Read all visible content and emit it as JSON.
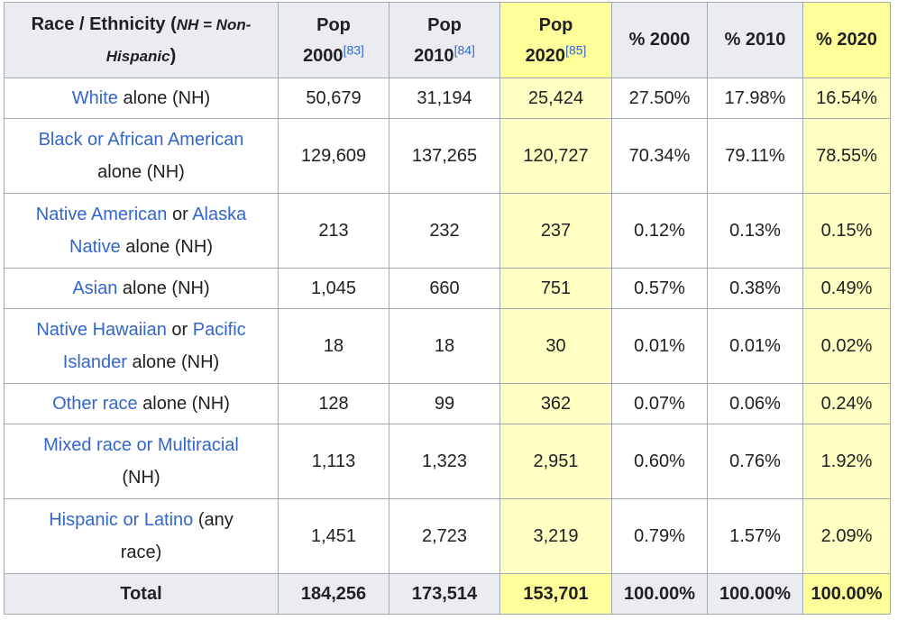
{
  "table": {
    "headers": {
      "race": {
        "label": "Race / Ethnicity",
        "note_open": " (",
        "note": "NH = Non-Hispanic",
        "note_close": ")"
      },
      "pop2000": {
        "label": "Pop",
        "year": "2000",
        "ref": "[83]"
      },
      "pop2010": {
        "label": "Pop",
        "year": "2010",
        "ref": "[84]"
      },
      "pop2020": {
        "label": "Pop",
        "year": "2020",
        "ref": "[85]"
      },
      "pct2000": "% 2000",
      "pct2010": "% 2010",
      "pct2020": "% 2020"
    },
    "rows": [
      {
        "link1": "White",
        "mid": " alone (NH)",
        "pop2000": "50,679",
        "pop2010": "31,194",
        "pop2020": "25,424",
        "pct2000": "27.50%",
        "pct2010": "17.98%",
        "pct2020": "16.54%"
      },
      {
        "link1": "Black or African American",
        "mid": "alone (NH)",
        "pop2000": "129,609",
        "pop2010": "137,265",
        "pop2020": "120,727",
        "pct2000": "70.34%",
        "pct2010": "79.11%",
        "pct2020": "78.55%"
      },
      {
        "link1": "Native American",
        "mid": " or ",
        "link2": "Alaska",
        "link3": "Native",
        "tail": " alone (NH)",
        "pop2000": "213",
        "pop2010": "232",
        "pop2020": "237",
        "pct2000": "0.12%",
        "pct2010": "0.13%",
        "pct2020": "0.15%"
      },
      {
        "link1": "Asian",
        "mid": " alone (NH)",
        "pop2000": "1,045",
        "pop2010": "660",
        "pop2020": "751",
        "pct2000": "0.57%",
        "pct2010": "0.38%",
        "pct2020": "0.49%"
      },
      {
        "link1": "Native Hawaiian",
        "mid": " or ",
        "link2": "Pacific",
        "link3": "Islander",
        "tail": " alone (NH)",
        "pop2000": "18",
        "pop2010": "18",
        "pop2020": "30",
        "pct2000": "0.01%",
        "pct2010": "0.01%",
        "pct2020": "0.02%"
      },
      {
        "link1": "Other race",
        "mid": " alone (NH)",
        "pop2000": "128",
        "pop2010": "99",
        "pop2020": "362",
        "pct2000": "0.07%",
        "pct2010": "0.06%",
        "pct2020": "0.24%"
      },
      {
        "link1": "Mixed race or Multiracial",
        "mid": "(NH)",
        "pop2000": "1,113",
        "pop2010": "1,323",
        "pop2020": "2,951",
        "pct2000": "0.60%",
        "pct2010": "0.76%",
        "pct2020": "1.92%"
      },
      {
        "link1": "Hispanic or Latino",
        "mid": " (any",
        "tail": "race)",
        "pop2000": "1,451",
        "pop2010": "2,723",
        "pop2020": "3,219",
        "pct2000": "0.79%",
        "pct2010": "1.57%",
        "pct2020": "2.09%"
      }
    ],
    "total": {
      "label": "Total",
      "pop2000": "184,256",
      "pop2010": "173,514",
      "pop2020": "153,701",
      "pct2000": "100.00%",
      "pct2010": "100.00%",
      "pct2020": "100.00%"
    }
  }
}
